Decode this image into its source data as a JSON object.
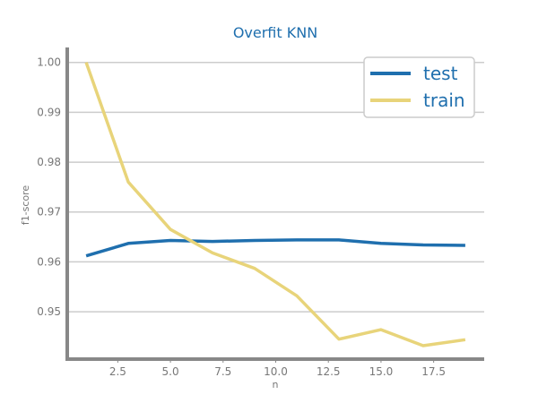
{
  "chart_data": {
    "type": "line",
    "title": "Overfit KNN",
    "xlabel": "n",
    "ylabel": "f1-score",
    "xlim": [
      0.1,
      19.9
    ],
    "ylim": [
      0.9405,
      1.003
    ],
    "xticks": [
      2.5,
      5.0,
      7.5,
      10.0,
      12.5,
      15.0,
      17.5
    ],
    "xtick_labels": [
      "2.5",
      "5.0",
      "7.5",
      "10.0",
      "12.5",
      "15.0",
      "17.5"
    ],
    "yticks": [
      0.95,
      0.96,
      0.97,
      0.98,
      0.99,
      1.0
    ],
    "ytick_labels": [
      "0.95",
      "0.96",
      "0.97",
      "0.98",
      "0.99",
      "1.00"
    ],
    "grid": "horizontal",
    "legend_position": "top-right",
    "x": [
      1,
      3,
      5,
      7,
      9,
      11,
      13,
      15,
      17,
      19
    ],
    "series": [
      {
        "name": "test",
        "color": "#1f6fae",
        "values": [
          0.9612,
          0.9637,
          0.9643,
          0.9641,
          0.9643,
          0.9644,
          0.9644,
          0.9637,
          0.9634,
          0.9633
        ]
      },
      {
        "name": "train",
        "color": "#e8d47a",
        "values": [
          1.0,
          0.976,
          0.9665,
          0.9618,
          0.9587,
          0.9532,
          0.9445,
          0.9464,
          0.9432,
          0.9444
        ]
      }
    ],
    "colors": {
      "title": "#1f6fae",
      "legend_text": "#1f6fae",
      "tick_text": "#777777",
      "axis": "#888888",
      "grid": "#cccccc"
    }
  }
}
